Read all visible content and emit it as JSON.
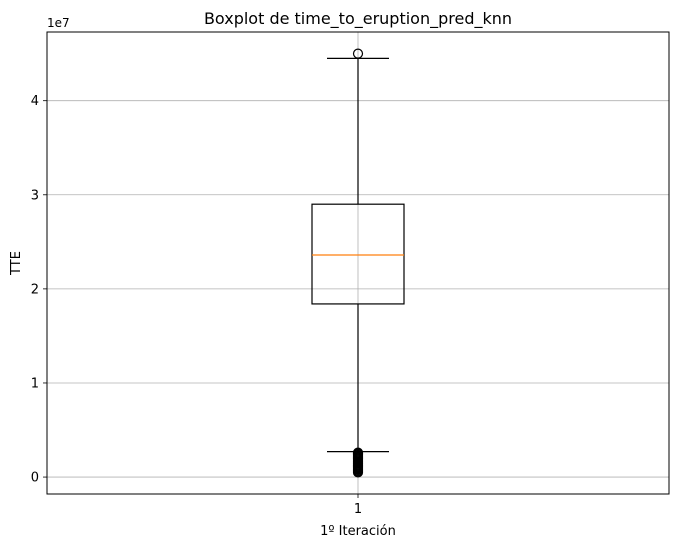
{
  "chart_data": {
    "type": "box",
    "title": "Boxplot de time_to_eruption_pred_knn",
    "xlabel": "1º Iteración",
    "ylabel": "TTE",
    "y_offset_label": "1e7",
    "categories": [
      "1"
    ],
    "ylim": [
      -1800000,
      47300000
    ],
    "y_ticks": [
      0,
      10000000,
      20000000,
      30000000,
      40000000
    ],
    "y_tick_labels": [
      "0",
      "1",
      "2",
      "3",
      "4"
    ],
    "grid": true,
    "box": {
      "whisker_low": 2700000,
      "q1": 18400000,
      "median": 23600000,
      "q3": 29000000,
      "whisker_high": 44500000
    },
    "outliers_high": [
      45000000
    ],
    "outliers_low": [
      2600000,
      2550000,
      2500000,
      2450000,
      2400000,
      2300000,
      2200000,
      2100000,
      2000000,
      1900000,
      1800000,
      1700000,
      1600000,
      1500000,
      1400000,
      1300000,
      1200000,
      1100000,
      1000000,
      900000,
      800000,
      700000,
      600000,
      500000
    ],
    "colors": {
      "box": "#000000",
      "median": "#ff7f0e",
      "grid": "#b0b0b0"
    }
  }
}
